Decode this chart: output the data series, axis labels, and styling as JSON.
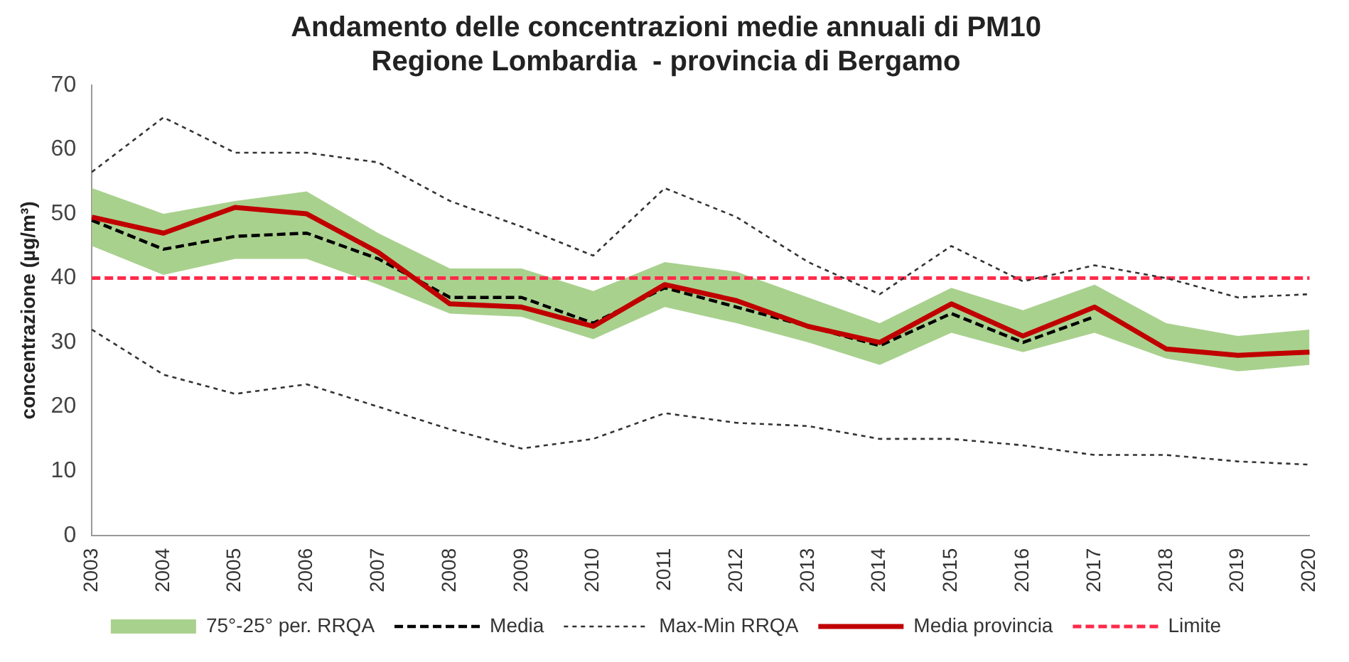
{
  "chart_data": {
    "type": "line",
    "title": [
      "Andamento delle concentrazioni medie annuali di PM10",
      "Regione Lombardia  - provincia di Bergamo"
    ],
    "ylabel": "concentrazione (µg/m³)",
    "categories": [
      "2003",
      "2004",
      "2005",
      "2006",
      "2007",
      "2008",
      "2009",
      "2010",
      "2011",
      "2012",
      "2013",
      "2014",
      "2015",
      "2016",
      "2017",
      "2018",
      "2019",
      "2020"
    ],
    "ylim": [
      0,
      70
    ],
    "yticks": [
      0,
      10,
      20,
      30,
      40,
      50,
      60,
      70
    ],
    "grid": false,
    "legend": "bottom",
    "marker": "none",
    "series": [
      {
        "name": "75°-25° per. RRQA",
        "type": "area",
        "color": "#a9d18e",
        "values": [
          null,
          null,
          null,
          null,
          null,
          null,
          null,
          null,
          null,
          null,
          null,
          null,
          null,
          null,
          null,
          null,
          null,
          null
        ],
        "lower": [
          45,
          40.5,
          43,
          43,
          39,
          34.5,
          34,
          30.5,
          35.5,
          33,
          30,
          26.5,
          31.5,
          28.5,
          31.5,
          27.5,
          25.5,
          26.5
        ],
        "upper": [
          54,
          50,
          52,
          53.5,
          47,
          41.5,
          41.5,
          38,
          42.5,
          41,
          37,
          33,
          38.5,
          35,
          39,
          33,
          31,
          32
        ]
      },
      {
        "name": "Media",
        "color": "#000000",
        "line_style": "dashed",
        "values": [
          49,
          44.5,
          46.5,
          47,
          43,
          37,
          37,
          33,
          38.5,
          35.5,
          32.5,
          29.5,
          34.5,
          30,
          34,
          null,
          null,
          null
        ]
      },
      {
        "name": "Max-Min RRQA",
        "color": "#333333",
        "line_style": "dotted",
        "values": [
          56.5,
          65,
          59.5,
          59.5,
          58,
          52,
          48,
          43.5,
          54,
          49.5,
          42.5,
          37.5,
          45,
          39.5,
          42,
          40,
          37,
          37.5
        ]
      },
      {
        "color": "#333333",
        "line_style": "dotted",
        "values": [
          32,
          25,
          22,
          23.5,
          20,
          16.5,
          13.5,
          15,
          19,
          17.5,
          17,
          15,
          15,
          14,
          12.5,
          12.5,
          11.5,
          11
        ]
      },
      {
        "name": "Media provincia",
        "color": "#c00000",
        "line_style": "solid",
        "values": [
          49.5,
          47,
          51,
          50,
          44,
          36,
          35.5,
          32.5,
          39,
          36.5,
          32.5,
          30,
          36,
          31,
          35.5,
          29,
          28,
          28.5
        ]
      }
    ],
    "ref_lines": [
      {
        "axis": "y",
        "value": 40,
        "label": "Limite",
        "color": "#ff2a4a",
        "line_style": "dashed"
      }
    ]
  }
}
